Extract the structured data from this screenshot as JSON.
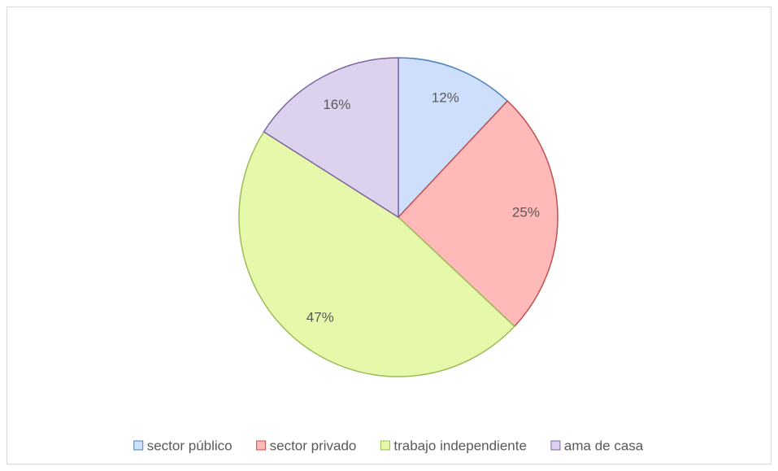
{
  "chart_data": {
    "type": "pie",
    "categories": [
      "sector público",
      "sector privado",
      "trabajo independiente",
      "ama de casa"
    ],
    "values": [
      12,
      25,
      47,
      16
    ],
    "value_labels": [
      "12%",
      "25%",
      "47%",
      "16%"
    ],
    "colors": [
      "#cddffa",
      "#ffb9b9",
      "#e6f8a9",
      "#ddd2ee"
    ],
    "edge_colors": [
      "#4f81bd",
      "#c0504d",
      "#9bbb59",
      "#8064a2"
    ],
    "legend": "bottom"
  }
}
